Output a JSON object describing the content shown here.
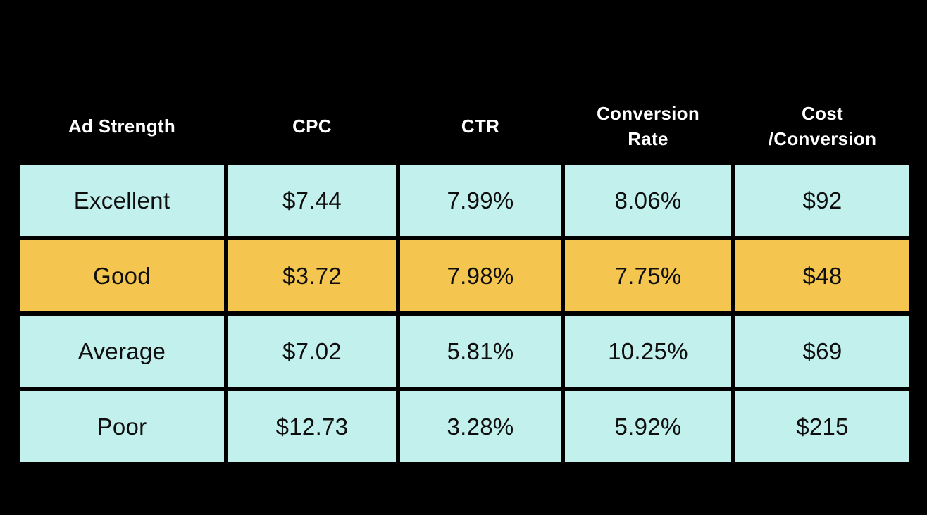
{
  "table": {
    "columns": [
      {
        "line1": "Ad Strength",
        "line2": ""
      },
      {
        "line1": "CPC",
        "line2": ""
      },
      {
        "line1": "CTR",
        "line2": ""
      },
      {
        "line1": "Conversion",
        "line2": "Rate"
      },
      {
        "line1": "Cost",
        "line2": "/Conversion"
      }
    ]
  },
  "chart_data": {
    "type": "table",
    "title": "",
    "columns": [
      "Ad Strength",
      "CPC",
      "CTR",
      "Conversion Rate",
      "Cost /Conversion"
    ],
    "rows": [
      [
        "Excellent",
        "$7.44",
        "7.99%",
        "8.06%",
        "$92"
      ],
      [
        "Good",
        "$3.72",
        "7.98%",
        "7.75%",
        "$48"
      ],
      [
        "Average",
        "$7.02",
        "5.81%",
        "10.25%",
        "$69"
      ],
      [
        "Poor",
        "$12.73",
        "3.28%",
        "5.92%",
        "$215"
      ]
    ],
    "highlighted_row_index": 1,
    "highlighted_row_label": "Good"
  },
  "colors": {
    "background": "#000000",
    "cell_background": "#c2f0ed",
    "highlight_background": "#f4c64f",
    "header_text": "#ffffff",
    "cell_text": "#0f0f0f"
  }
}
